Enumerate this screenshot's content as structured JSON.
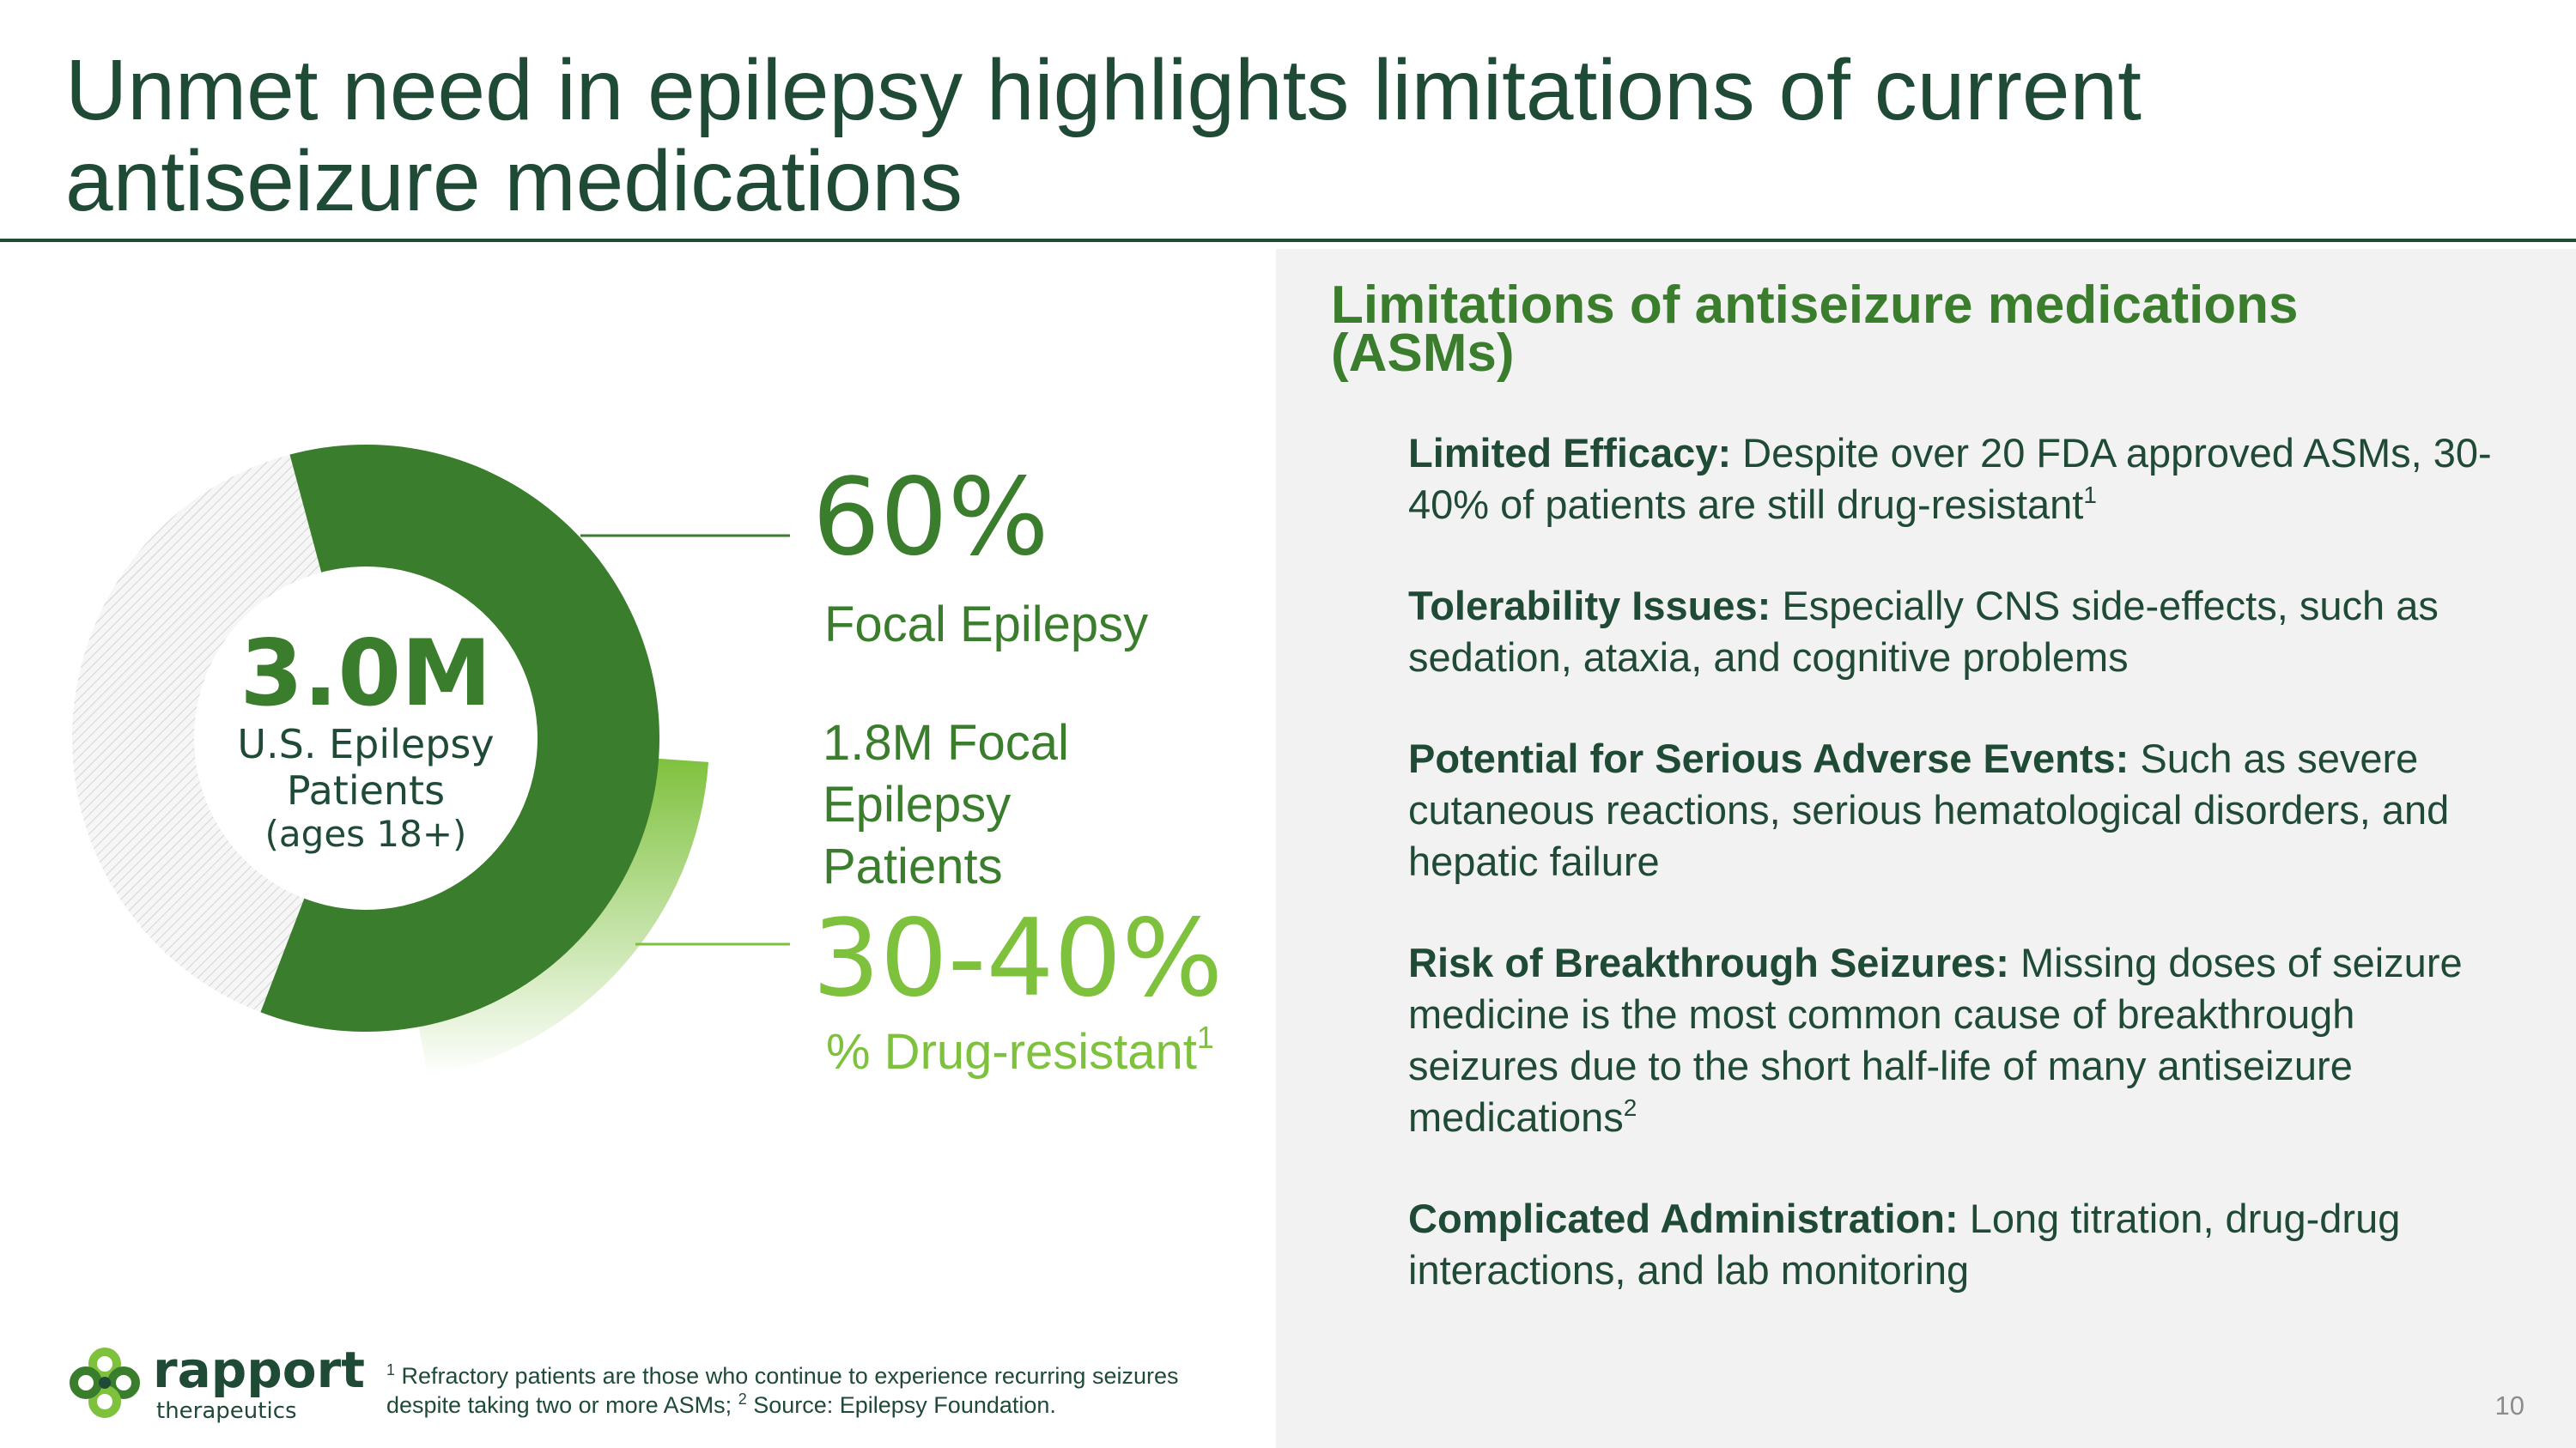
{
  "slide": {
    "title_line1": "Unmet need in epilepsy highlights limitations of current",
    "title_line2": "antiseizure medications",
    "page_number": "10"
  },
  "donut": {
    "center_value": "3.0M",
    "center_label_line1": "U.S. Epilepsy",
    "center_label_line2": "Patients",
    "center_sub": "(ages 18+)",
    "focal_share": 0.6,
    "drug_resistant_share_of_focal": 0.35
  },
  "stats": {
    "focal_pct": "60%",
    "focal_label": "Focal Epilepsy",
    "focal_patients_line1": "1.8M Focal",
    "focal_patients_line2": "Epilepsy",
    "focal_patients_line3": "Patients",
    "drug_resistant_pct": "30-40%",
    "drug_resistant_label": "% Drug-resistant",
    "drug_resistant_sup": "1"
  },
  "limitations": {
    "heading_line1": "Limitations of antiseizure medications",
    "heading_line2": "(ASMs)",
    "items": [
      {
        "title": "Limited Efficacy:",
        "text": " Despite over 20 FDA approved ASMs, 30-40% of patients are still drug-resistant",
        "sup": "1"
      },
      {
        "title": "Tolerability Issues:",
        "text": " Especially CNS side-effects, such as sedation, ataxia, and cognitive problems",
        "sup": ""
      },
      {
        "title": "Potential for Serious Adverse Events:",
        "text": " Such as severe cutaneous reactions, serious hematological disorders, and hepatic failure",
        "sup": ""
      },
      {
        "title": "Risk of Breakthrough Seizures:",
        "text": " Missing doses of seizure medicine is the most common cause of breakthrough seizures due to the short half-life of many antiseizure medications",
        "sup": "2"
      },
      {
        "title": "Complicated Administration:",
        "text": " Long titration, drug-drug interactions, and lab monitoring",
        "sup": ""
      }
    ]
  },
  "footer": {
    "logo_name": "rapport",
    "logo_sub": "therapeutics",
    "footnote_sup1": "1",
    "footnote_part1": " Refractory patients are those who continue to experience recurring seizures despite taking two or more ASMs; ",
    "footnote_sup2": "2",
    "footnote_part2": " Source: Epilepsy Foundation."
  },
  "colors": {
    "dark_green": "#1f4a36",
    "green": "#3a7d2c",
    "light_green": "#7ec13d",
    "panel_gray": "#f2f2f2"
  }
}
